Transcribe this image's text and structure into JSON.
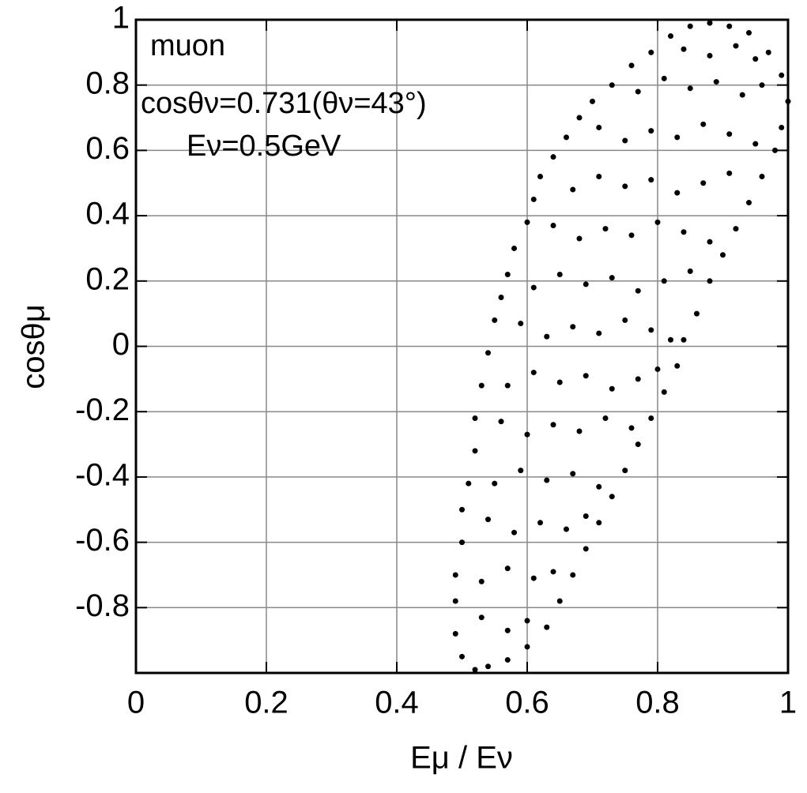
{
  "chart_data": {
    "type": "scatter",
    "xlabel": "Eμ / Eν",
    "ylabel": "cosθμ",
    "annotations": [
      "muon",
      "cosθν=0.731(θν=43°)",
      "Eν=0.5GeV"
    ],
    "color": "#000000",
    "grid": true,
    "xlim": [
      0,
      1
    ],
    "ylim": [
      -1,
      1
    ],
    "xticks": [
      0,
      0.2,
      0.4,
      0.6,
      0.8,
      1
    ],
    "yticks": [
      -0.8,
      -0.6,
      -0.4,
      -0.2,
      0,
      0.2,
      0.4,
      0.6,
      0.8,
      1
    ],
    "x": [
      0.52,
      0.5,
      0.49,
      0.49,
      0.49,
      0.5,
      0.5,
      0.51,
      0.52,
      0.52,
      0.53,
      0.54,
      0.55,
      0.56,
      0.57,
      0.58,
      0.6,
      0.61,
      0.62,
      0.64,
      0.66,
      0.68,
      0.7,
      0.73,
      0.76,
      0.79,
      0.82,
      0.85,
      0.88,
      0.91,
      0.94,
      0.97,
      0.99,
      1.0,
      0.99,
      0.98,
      0.96,
      0.94,
      0.92,
      0.9,
      0.88,
      0.86,
      0.84,
      0.83,
      0.81,
      0.79,
      0.77,
      0.75,
      0.73,
      0.71,
      0.69,
      0.67,
      0.65,
      0.63,
      0.6,
      0.57,
      0.54,
      0.53,
      0.57,
      0.6,
      0.53,
      0.57,
      0.61,
      0.64,
      0.54,
      0.58,
      0.62,
      0.66,
      0.69,
      0.55,
      0.59,
      0.63,
      0.67,
      0.71,
      0.56,
      0.6,
      0.64,
      0.68,
      0.72,
      0.76,
      0.57,
      0.61,
      0.65,
      0.69,
      0.73,
      0.77,
      0.8,
      0.59,
      0.63,
      0.67,
      0.71,
      0.75,
      0.79,
      0.82,
      0.61,
      0.65,
      0.69,
      0.73,
      0.77,
      0.81,
      0.85,
      0.64,
      0.68,
      0.72,
      0.76,
      0.8,
      0.84,
      0.88,
      0.67,
      0.71,
      0.75,
      0.79,
      0.83,
      0.87,
      0.91,
      0.71,
      0.75,
      0.79,
      0.83,
      0.87,
      0.91,
      0.95,
      0.77,
      0.81,
      0.85,
      0.89,
      0.93,
      0.96,
      0.84,
      0.88,
      0.92,
      0.95
    ],
    "values": [
      -0.99,
      -0.95,
      -0.88,
      -0.78,
      -0.7,
      -0.6,
      -0.5,
      -0.42,
      -0.32,
      -0.22,
      -0.12,
      -0.02,
      0.08,
      0.15,
      0.22,
      0.3,
      0.38,
      0.45,
      0.52,
      0.58,
      0.64,
      0.7,
      0.75,
      0.8,
      0.86,
      0.9,
      0.95,
      0.98,
      0.99,
      0.98,
      0.96,
      0.9,
      0.83,
      0.75,
      0.67,
      0.6,
      0.52,
      0.44,
      0.36,
      0.28,
      0.2,
      0.1,
      0.02,
      -0.06,
      -0.14,
      -0.22,
      -0.3,
      -0.38,
      -0.46,
      -0.54,
      -0.62,
      -0.7,
      -0.78,
      -0.86,
      -0.92,
      -0.96,
      -0.98,
      -0.83,
      -0.87,
      -0.84,
      -0.72,
      -0.68,
      -0.71,
      -0.69,
      -0.53,
      -0.57,
      -0.54,
      -0.56,
      -0.52,
      -0.42,
      -0.38,
      -0.41,
      -0.39,
      -0.43,
      -0.23,
      -0.27,
      -0.24,
      -0.26,
      -0.22,
      -0.25,
      -0.12,
      -0.08,
      -0.11,
      -0.09,
      -0.13,
      -0.1,
      -0.07,
      0.07,
      0.03,
      0.06,
      0.04,
      0.08,
      0.05,
      0.02,
      0.18,
      0.22,
      0.19,
      0.21,
      0.17,
      0.2,
      0.23,
      0.37,
      0.33,
      0.36,
      0.34,
      0.38,
      0.35,
      0.32,
      0.48,
      0.52,
      0.49,
      0.51,
      0.47,
      0.5,
      0.53,
      0.67,
      0.63,
      0.66,
      0.64,
      0.68,
      0.65,
      0.62,
      0.78,
      0.82,
      0.79,
      0.81,
      0.77,
      0.8,
      0.91,
      0.89,
      0.92,
      0.88
    ]
  }
}
